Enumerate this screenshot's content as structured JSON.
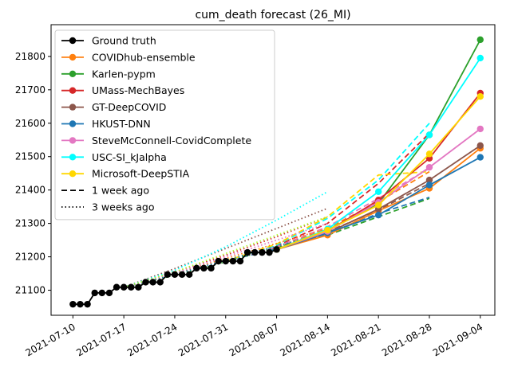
{
  "chart_data": {
    "type": "line",
    "title": "cum_death forecast (26_MI)",
    "xlabel": "",
    "ylabel": "",
    "x_range": [
      "2021-07-07",
      "2021-09-06"
    ],
    "ylim": [
      21025,
      21895
    ],
    "x_ticks": [
      "2021-07-10",
      "2021-07-17",
      "2021-07-24",
      "2021-07-31",
      "2021-08-07",
      "2021-08-14",
      "2021-08-21",
      "2021-08-28",
      "2021-09-04"
    ],
    "y_ticks": [
      21100,
      21200,
      21300,
      21400,
      21500,
      21600,
      21700,
      21800
    ],
    "legend_position": "top-left",
    "grid": false,
    "ground_truth": {
      "name": "Ground truth",
      "color": "#000000",
      "x": [
        "2021-07-10",
        "2021-07-11",
        "2021-07-12",
        "2021-07-13",
        "2021-07-14",
        "2021-07-15",
        "2021-07-16",
        "2021-07-17",
        "2021-07-18",
        "2021-07-19",
        "2021-07-20",
        "2021-07-21",
        "2021-07-22",
        "2021-07-23",
        "2021-07-24",
        "2021-07-25",
        "2021-07-26",
        "2021-07-27",
        "2021-07-28",
        "2021-07-29",
        "2021-07-30",
        "2021-07-31",
        "2021-08-01",
        "2021-08-02",
        "2021-08-03",
        "2021-08-04",
        "2021-08-05",
        "2021-08-06",
        "2021-08-07"
      ],
      "y": [
        21058,
        21058,
        21058,
        21092,
        21092,
        21092,
        21109,
        21109,
        21109,
        21109,
        21124,
        21124,
        21124,
        21147,
        21147,
        21147,
        21147,
        21166,
        21166,
        21166,
        21187,
        21187,
        21187,
        21187,
        21213,
        21213,
        21213,
        21213,
        21222
      ]
    },
    "series": [
      {
        "name": "COVIDhub-ensemble",
        "color": "#ff7f0e",
        "x": [
          "2021-08-07",
          "2021-08-14",
          "2021-08-21",
          "2021-08-28",
          "2021-09-04"
        ],
        "y": [
          21222,
          21265,
          21338,
          21405,
          21525
        ]
      },
      {
        "name": "Karlen-pypm",
        "color": "#2ca02c",
        "x": [
          "2021-08-07",
          "2021-08-14",
          "2021-08-21",
          "2021-08-28",
          "2021-09-04"
        ],
        "y": [
          21222,
          21280,
          21360,
          21565,
          21850
        ]
      },
      {
        "name": "UMass-MechBayes",
        "color": "#d62728",
        "x": [
          "2021-08-07",
          "2021-08-14",
          "2021-08-21",
          "2021-08-28",
          "2021-09-04"
        ],
        "y": [
          21222,
          21276,
          21370,
          21495,
          21690
        ]
      },
      {
        "name": "GT-DeepCOVID",
        "color": "#8c564b",
        "x": [
          "2021-08-07",
          "2021-08-14",
          "2021-08-21",
          "2021-08-28",
          "2021-09-04"
        ],
        "y": [
          21222,
          21272,
          21343,
          21430,
          21533
        ]
      },
      {
        "name": "HKUST-DNN",
        "color": "#1f77b4",
        "x": [
          "2021-08-07",
          "2021-08-14",
          "2021-08-21",
          "2021-08-28",
          "2021-09-04"
        ],
        "y": [
          21222,
          21272,
          21325,
          21415,
          21498
        ]
      },
      {
        "name": "SteveMcConnell-CovidComplete",
        "color": "#e377c2",
        "x": [
          "2021-08-07",
          "2021-08-14",
          "2021-08-21",
          "2021-08-28",
          "2021-09-04"
        ],
        "y": [
          21222,
          21276,
          21363,
          21468,
          21583
        ]
      },
      {
        "name": "USC-SI_kJalpha",
        "color": "#00ffff",
        "x": [
          "2021-08-07",
          "2021-08-14",
          "2021-08-21",
          "2021-08-28",
          "2021-09-04"
        ],
        "y": [
          21222,
          21283,
          21395,
          21565,
          21795
        ]
      },
      {
        "name": "Microsoft-DeepSTIA",
        "color": "#ffd700",
        "x": [
          "2021-08-07",
          "2021-08-14",
          "2021-08-21",
          "2021-08-28",
          "2021-09-04"
        ],
        "y": [
          21222,
          21280,
          21355,
          21508,
          21680
        ]
      }
    ],
    "older_forecasts": [
      {
        "style": "dashed",
        "label": "1 week ago",
        "color": "#ff7f0e",
        "x": [
          "2021-07-31",
          "2021-08-07",
          "2021-08-14",
          "2021-08-21",
          "2021-08-28"
        ],
        "y": [
          21187,
          21228,
          21285,
          21365,
          21455
        ]
      },
      {
        "style": "dashed",
        "label": "1 week ago",
        "color": "#2ca02c",
        "x": [
          "2021-07-31",
          "2021-08-07",
          "2021-08-14",
          "2021-08-21",
          "2021-08-28"
        ],
        "y": [
          21187,
          21232,
          21265,
          21320,
          21375
        ]
      },
      {
        "style": "dashed",
        "label": "1 week ago",
        "color": "#d62728",
        "x": [
          "2021-07-31",
          "2021-08-07",
          "2021-08-14",
          "2021-08-21",
          "2021-08-28"
        ],
        "y": [
          21187,
          21233,
          21300,
          21420,
          21570
        ]
      },
      {
        "style": "dashed",
        "label": "1 week ago",
        "color": "#8c564b",
        "x": [
          "2021-07-31",
          "2021-08-07",
          "2021-08-14",
          "2021-08-21",
          "2021-08-28"
        ],
        "y": [
          21187,
          21225,
          21275,
          21340,
          21420
        ]
      },
      {
        "style": "dashed",
        "label": "1 week ago",
        "color": "#1f77b4",
        "x": [
          "2021-07-31",
          "2021-08-07",
          "2021-08-14",
          "2021-08-21",
          "2021-08-28"
        ],
        "y": [
          21187,
          21224,
          21268,
          21330,
          21378
        ]
      },
      {
        "style": "dashed",
        "label": "1 week ago",
        "color": "#e377c2",
        "x": [
          "2021-07-31",
          "2021-08-07",
          "2021-08-14",
          "2021-08-21",
          "2021-08-28"
        ],
        "y": [
          21187,
          21230,
          21290,
          21375,
          21465
        ]
      },
      {
        "style": "dashed",
        "label": "1 week ago",
        "color": "#00ffff",
        "x": [
          "2021-07-31",
          "2021-08-07",
          "2021-08-14",
          "2021-08-21",
          "2021-08-28"
        ],
        "y": [
          21187,
          21235,
          21315,
          21430,
          21600
        ]
      },
      {
        "style": "dashed",
        "label": "1 week ago",
        "color": "#ffd700",
        "x": [
          "2021-07-31",
          "2021-08-07",
          "2021-08-14",
          "2021-08-21",
          "2021-08-28"
        ],
        "y": [
          21187,
          21238,
          21320,
          21445,
          21455
        ]
      },
      {
        "style": "dotted",
        "label": "3 weeks ago",
        "color": "#ff7f0e",
        "x": [
          "2021-07-17",
          "2021-07-24",
          "2021-07-31",
          "2021-08-07",
          "2021-08-14"
        ],
        "y": [
          21109,
          21150,
          21195,
          21240,
          21285
        ]
      },
      {
        "style": "dotted",
        "label": "3 weeks ago",
        "color": "#2ca02c",
        "x": [
          "2021-07-17",
          "2021-07-24",
          "2021-07-31",
          "2021-08-07",
          "2021-08-14"
        ],
        "y": [
          21109,
          21145,
          21185,
          21228,
          21265
        ]
      },
      {
        "style": "dotted",
        "label": "3 weeks ago",
        "color": "#d62728",
        "x": [
          "2021-07-17",
          "2021-07-24",
          "2021-07-31",
          "2021-08-07",
          "2021-08-14"
        ],
        "y": [
          21109,
          21155,
          21205,
          21260,
          21320
        ]
      },
      {
        "style": "dotted",
        "label": "3 weeks ago",
        "color": "#8c564b",
        "x": [
          "2021-07-17",
          "2021-07-24",
          "2021-07-31",
          "2021-08-07",
          "2021-08-14"
        ],
        "y": [
          21109,
          21165,
          21225,
          21285,
          21345
        ]
      },
      {
        "style": "dotted",
        "label": "3 weeks ago",
        "color": "#1f77b4",
        "x": [
          "2021-07-17",
          "2021-07-24",
          "2021-07-31",
          "2021-08-07",
          "2021-08-14"
        ],
        "y": [
          21109,
          21148,
          21190,
          21232,
          21275
        ]
      },
      {
        "style": "dotted",
        "label": "3 weeks ago",
        "color": "#e377c2",
        "x": [
          "2021-07-17",
          "2021-07-24",
          "2021-07-31",
          "2021-08-07",
          "2021-08-14"
        ],
        "y": [
          21109,
          21152,
          21200,
          21250,
          21300
        ]
      },
      {
        "style": "dotted",
        "label": "3 weeks ago",
        "color": "#00ffff",
        "x": [
          "2021-07-17",
          "2021-07-24",
          "2021-07-31",
          "2021-08-07",
          "2021-08-14"
        ],
        "y": [
          21109,
          21160,
          21230,
          21310,
          21395
        ]
      },
      {
        "style": "dotted",
        "label": "3 weeks ago",
        "color": "#adff2f",
        "x": [
          "2021-07-17",
          "2021-07-24",
          "2021-07-31",
          "2021-08-07",
          "2021-08-14"
        ],
        "y": [
          21109,
          21155,
          21210,
          21265,
          21320
        ]
      }
    ],
    "legend": [
      {
        "label": "Ground truth",
        "color": "#000000",
        "style": "solid-marker"
      },
      {
        "label": "COVIDhub-ensemble",
        "color": "#ff7f0e",
        "style": "solid-marker"
      },
      {
        "label": "Karlen-pypm",
        "color": "#2ca02c",
        "style": "solid-marker"
      },
      {
        "label": "UMass-MechBayes",
        "color": "#d62728",
        "style": "solid-marker"
      },
      {
        "label": "GT-DeepCOVID",
        "color": "#8c564b",
        "style": "solid-marker"
      },
      {
        "label": "HKUST-DNN",
        "color": "#1f77b4",
        "style": "solid-marker"
      },
      {
        "label": "SteveMcConnell-CovidComplete",
        "color": "#e377c2",
        "style": "solid-marker"
      },
      {
        "label": "USC-SI_kJalpha",
        "color": "#00ffff",
        "style": "solid-marker"
      },
      {
        "label": "Microsoft-DeepSTIA",
        "color": "#ffd700",
        "style": "solid-marker"
      },
      {
        "label": "1 week ago",
        "color": "#000000",
        "style": "dashed"
      },
      {
        "label": "3 weeks ago",
        "color": "#000000",
        "style": "dotted"
      }
    ]
  }
}
